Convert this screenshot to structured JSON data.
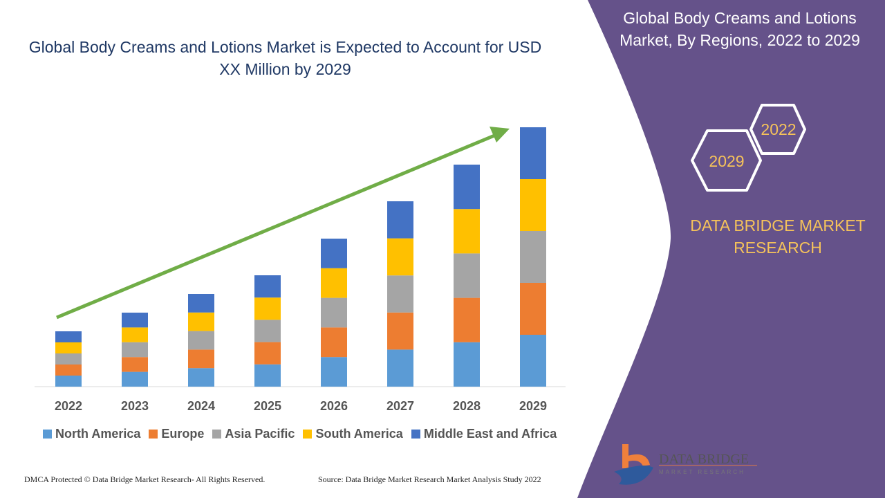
{
  "title": "Global Body Creams and Lotions Market is Expected to Account for USD XX Million by 2029",
  "side_panel": {
    "title": "Global Body Creams and Lotions Market, By Regions, 2022 to 2029",
    "hex_years": [
      "2022",
      "2029"
    ],
    "brand_text": "DATA BRIDGE MARKET RESEARCH",
    "logo_text": "DATA BRIDGE MARKET RESEARCH",
    "panel_color": "#65528a"
  },
  "footer": {
    "left": "DMCA Protected © Data Bridge Market Research- All Rights Reserved.",
    "right": "Source: Data Bridge Market Research Market Analysis Study 2022"
  },
  "chart_data": {
    "type": "bar",
    "stacked": true,
    "categories": [
      "2022",
      "2023",
      "2024",
      "2025",
      "2026",
      "2027",
      "2028",
      "2029"
    ],
    "series": [
      {
        "name": "North America",
        "color": "#5b9bd5",
        "values": [
          16,
          21.4,
          26.8,
          32.2,
          42.8,
          53.6,
          64.2,
          75
        ]
      },
      {
        "name": "Europe",
        "color": "#ed7d31",
        "values": [
          16,
          21.4,
          26.8,
          32.2,
          42.8,
          53.6,
          64.2,
          75
        ]
      },
      {
        "name": "Asia Pacific",
        "color": "#a5a5a5",
        "values": [
          16,
          21.4,
          26.8,
          32.2,
          42.8,
          53.6,
          64.2,
          75
        ]
      },
      {
        "name": "South America",
        "color": "#ffc000",
        "values": [
          16,
          21.4,
          26.8,
          32.2,
          42.8,
          53.6,
          64.2,
          75
        ]
      },
      {
        "name": "Middle East and Africa",
        "color": "#4472c4",
        "values": [
          16,
          21.4,
          26.8,
          32.2,
          42.8,
          53.6,
          64.2,
          75
        ]
      }
    ],
    "y_axis_shown": false,
    "grid": false,
    "legend_position": "bottom",
    "trend_arrow_color": "#70ad47"
  }
}
